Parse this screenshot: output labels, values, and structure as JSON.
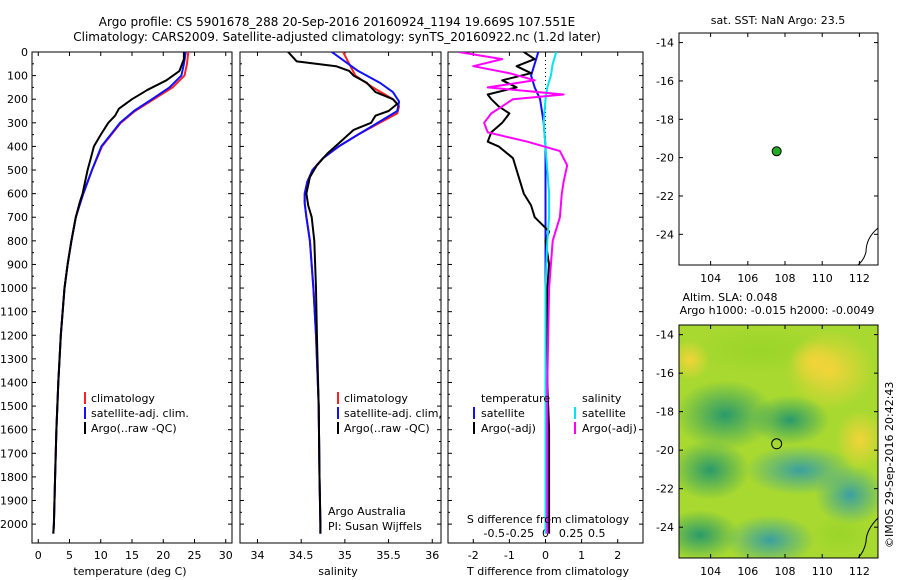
{
  "header": {
    "line1": "Argo profile: CS 5901678_288 20-Sep-2016 20160924_1194 19.669S 107.551E",
    "line2": "Climatology: CARS2009. Satellite-adjusted climatology: synTS_20160922.nc (1.2d later)"
  },
  "side": {
    "sst_title": "sat. SST: NaN Argo: 23.5",
    "sla_title1": "Altim. SLA: 0.048",
    "sla_title2": "Argo h1000: -0.015 h2000: -0.0049",
    "credit": "©IMOS 29-Sep-2016 20:42:43"
  },
  "colors": {
    "climatology": "#ff2020",
    "satellite": "#1010ff",
    "argo": "#000000",
    "sat_sal": "#00e5ee",
    "argo_sal": "#ff00ff",
    "dot": "#22aa22"
  },
  "chart_data": [
    {
      "type": "line",
      "title": "",
      "xlabel": "temperature (deg C)",
      "ylabel": "",
      "xlim": [
        -1,
        31
      ],
      "ylim": [
        2080,
        0
      ],
      "xticks": [
        "0",
        "5",
        "10",
        "15",
        "20",
        "25",
        "30"
      ],
      "xtick_values": [
        0,
        5,
        10,
        15,
        20,
        25,
        30
      ],
      "yticks": [
        "0",
        "100",
        "200",
        "300",
        "400",
        "500",
        "600",
        "700",
        "800",
        "900",
        "1000",
        "1100",
        "1200",
        "1300",
        "1400",
        "1500",
        "1600",
        "1700",
        "1800",
        "1900",
        "2000"
      ],
      "legend": [
        "climatology",
        "satellite-adj. clim.",
        "Argo(..raw -QC)"
      ],
      "series": [
        {
          "name": "climatology",
          "color_key": "climatology",
          "depth": [
            0,
            50,
            100,
            150,
            200,
            250,
            300,
            400,
            500,
            600,
            650,
            700,
            800,
            900,
            1000,
            1200,
            1400,
            1600,
            1800,
            2000,
            2040
          ],
          "values": [
            24,
            23.8,
            23.4,
            21.5,
            18.5,
            15.5,
            13.2,
            10.2,
            8.6,
            7.2,
            6.6,
            6.0,
            5.3,
            4.7,
            4.2,
            3.6,
            3.2,
            2.9,
            2.7,
            2.5,
            2.4
          ]
        },
        {
          "name": "satellite-adj. clim.",
          "color_key": "satellite",
          "depth": [
            0,
            50,
            100,
            150,
            200,
            250,
            300,
            400,
            500,
            600,
            650,
            700,
            800,
            900,
            1000,
            1200,
            1400,
            1600,
            1800,
            2000,
            2040
          ],
          "values": [
            23.6,
            23.3,
            22.9,
            21.0,
            18.2,
            15.3,
            13.1,
            10.1,
            8.6,
            7.2,
            6.6,
            6.0,
            5.3,
            4.7,
            4.2,
            3.6,
            3.2,
            2.9,
            2.7,
            2.5,
            2.4
          ]
        },
        {
          "name": "Argo(..raw -QC)",
          "color_key": "argo",
          "depth": [
            0,
            30,
            80,
            120,
            160,
            200,
            240,
            270,
            300,
            350,
            400,
            450,
            500,
            600,
            640,
            700,
            800,
            900,
            1000,
            1200,
            1400,
            1600,
            1800,
            2000,
            2040
          ],
          "values": [
            23.3,
            23.3,
            22.6,
            20.5,
            17.5,
            15.0,
            12.9,
            12.3,
            11.2,
            10.0,
            8.9,
            8.4,
            7.9,
            7.1,
            6.6,
            6.0,
            5.3,
            4.7,
            4.2,
            3.6,
            3.2,
            2.9,
            2.7,
            2.5,
            2.4
          ]
        }
      ]
    },
    {
      "type": "line",
      "title": "",
      "xlabel": "salinity",
      "ylabel": "",
      "xlim": [
        33.8,
        36.1
      ],
      "ylim": [
        2080,
        0
      ],
      "xticks": [
        "34",
        "34.5",
        "35",
        "35.5",
        "36"
      ],
      "xtick_values": [
        34,
        34.5,
        35,
        35.5,
        36
      ],
      "legend": [
        "climatology",
        "satellite-adj. clim.",
        "Argo(..raw -QC)"
      ],
      "annotation": [
        "Argo Australia",
        "PI: Susan Wijffels"
      ],
      "series": [
        {
          "name": "climatology",
          "color_key": "climatology",
          "depth": [
            0,
            50,
            100,
            150,
            200,
            230,
            260,
            300,
            350,
            400,
            450,
            500,
            550,
            600,
            640,
            700,
            800,
            1000,
            1200,
            1500,
            1800,
            2000,
            2040
          ],
          "values": [
            34.98,
            35.05,
            35.12,
            35.32,
            35.55,
            35.62,
            35.6,
            35.4,
            35.15,
            34.93,
            34.75,
            34.63,
            34.57,
            34.54,
            34.54,
            34.56,
            34.6,
            34.64,
            34.67,
            34.7,
            34.71,
            34.72,
            34.72
          ]
        },
        {
          "name": "satellite-adj. clim.",
          "color_key": "satellite",
          "depth": [
            0,
            40,
            80,
            130,
            170,
            210,
            250,
            290,
            350,
            400,
            450,
            500,
            550,
            600,
            640,
            700,
            800,
            1000,
            1200,
            1500,
            1800,
            2000,
            2040
          ],
          "values": [
            34.85,
            35.0,
            35.15,
            35.4,
            35.55,
            35.62,
            35.6,
            35.42,
            35.15,
            34.93,
            34.75,
            34.63,
            34.57,
            34.54,
            34.54,
            34.56,
            34.6,
            34.64,
            34.67,
            34.7,
            34.71,
            34.72,
            34.72
          ]
        },
        {
          "name": "Argo(..raw -QC)",
          "color_key": "argo",
          "depth": [
            0,
            40,
            60,
            80,
            100,
            130,
            170,
            200,
            220,
            250,
            270,
            300,
            330,
            380,
            430,
            480,
            530,
            600,
            650,
            700,
            800,
            1000,
            1200,
            1500,
            1800,
            2000,
            2040
          ],
          "values": [
            34.35,
            34.45,
            34.9,
            35.05,
            35.1,
            35.25,
            35.35,
            35.55,
            35.6,
            35.5,
            35.35,
            35.3,
            35.1,
            34.95,
            34.8,
            34.68,
            34.6,
            34.56,
            34.58,
            34.62,
            34.65,
            34.67,
            34.68,
            34.7,
            34.71,
            34.72,
            34.72
          ]
        }
      ]
    },
    {
      "type": "line",
      "title": "",
      "xlabel": "T difference from climatology",
      "xlabel_top": "S difference from climatology",
      "ylabel": "",
      "xlim": [
        -2.7,
        2.7
      ],
      "ylim": [
        2080,
        0
      ],
      "xticks": [
        "-2",
        "-1",
        "0",
        "1",
        "2"
      ],
      "xtick_values": [
        -2,
        -1,
        0,
        1,
        2
      ],
      "xticks_top": [
        "-0.5",
        "-0.25",
        "0",
        "0.25",
        "0.5"
      ],
      "legend_left_title": "temperature",
      "legend_right_title": "salinity",
      "legend": [
        "satellite",
        "Argo(-adj)",
        "satellite",
        "Argo(-adj)"
      ],
      "series": [
        {
          "name": "T satellite",
          "color_key": "satellite",
          "depth": [
            0,
            50,
            100,
            150,
            200,
            300,
            400,
            600,
            800,
            1000,
            1400,
            1800,
            2040
          ],
          "values": [
            -0.2,
            -0.3,
            -0.4,
            -0.3,
            -0.15,
            -0.05,
            0,
            0,
            0,
            0,
            0,
            0,
            0
          ]
        },
        {
          "name": "T Argo(-adj)",
          "color_key": "argo",
          "depth": [
            0,
            30,
            60,
            90,
            120,
            150,
            180,
            200,
            230,
            260,
            300,
            340,
            380,
            400,
            450,
            500,
            550,
            600,
            650,
            700,
            760,
            800,
            900,
            1000,
            1200,
            1400,
            1600,
            1800,
            2000,
            2040
          ],
          "values": [
            -0.6,
            -0.3,
            -0.8,
            -0.4,
            -1.2,
            -0.8,
            -1.6,
            -1.5,
            -1.3,
            -1.0,
            -1.2,
            -1.5,
            -1.6,
            -1.3,
            -0.9,
            -0.8,
            -0.7,
            -0.6,
            -0.4,
            -0.3,
            0.1,
            0.0,
            0.1,
            0.05,
            0.05,
            0.05,
            0.1,
            0.1,
            0.1,
            0.1
          ]
        },
        {
          "name": "S satellite",
          "color_key": "sat_sal",
          "depth": [
            0,
            50,
            100,
            150,
            200,
            300,
            400,
            500,
            600,
            700,
            800,
            1000,
            1400,
            1800,
            2040
          ],
          "values": [
            0.3,
            0.2,
            0.15,
            0.05,
            0.0,
            -0.05,
            0.0,
            0.05,
            0.1,
            0.1,
            0.05,
            0.0,
            0.0,
            0.0,
            0.0
          ]
        },
        {
          "name": "S Argo(-adj)",
          "color_key": "argo_sal",
          "depth": [
            0,
            30,
            60,
            90,
            120,
            150,
            180,
            200,
            230,
            260,
            300,
            340,
            380,
            420,
            480,
            550,
            600,
            700,
            800,
            1000,
            1400,
            1800,
            2040
          ],
          "values": [
            -2.4,
            -1.2,
            -2.0,
            -1.0,
            -0.3,
            -1.6,
            0.5,
            -0.9,
            -1.2,
            -1.5,
            -1.7,
            -1.6,
            -0.5,
            0.4,
            0.6,
            0.5,
            0.45,
            0.4,
            0.2,
            0.1,
            0.05,
            0.05,
            0.05
          ]
        }
      ]
    },
    {
      "type": "scatter",
      "title": "sat. SST: NaN Argo: 23.5",
      "xlim": [
        102.3,
        113
      ],
      "ylim": [
        -25.6,
        -13.5
      ],
      "xticks": [
        "104",
        "106",
        "108",
        "110",
        "112"
      ],
      "xtick_values": [
        104,
        106,
        108,
        110,
        112
      ],
      "yticks": [
        "-14",
        "-16",
        "-18",
        "-20",
        "-22",
        "-24"
      ],
      "ytick_values": [
        -14,
        -16,
        -18,
        -20,
        -22,
        -24
      ],
      "points": [
        {
          "lon": 107.551,
          "lat": -19.669
        }
      ]
    },
    {
      "type": "heatmap",
      "title": "Altim. SLA: 0.048",
      "xlim": [
        102.3,
        113
      ],
      "ylim": [
        -25.6,
        -13.5
      ],
      "xticks": [
        "104",
        "106",
        "108",
        "110",
        "112"
      ],
      "xtick_values": [
        104,
        106,
        108,
        110,
        112
      ],
      "yticks": [
        "-14",
        "-16",
        "-18",
        "-20",
        "-22",
        "-24"
      ],
      "ytick_values": [
        -14,
        -16,
        -18,
        -20,
        -22,
        -24
      ],
      "points": [
        {
          "lon": 107.551,
          "lat": -19.669
        }
      ]
    }
  ]
}
